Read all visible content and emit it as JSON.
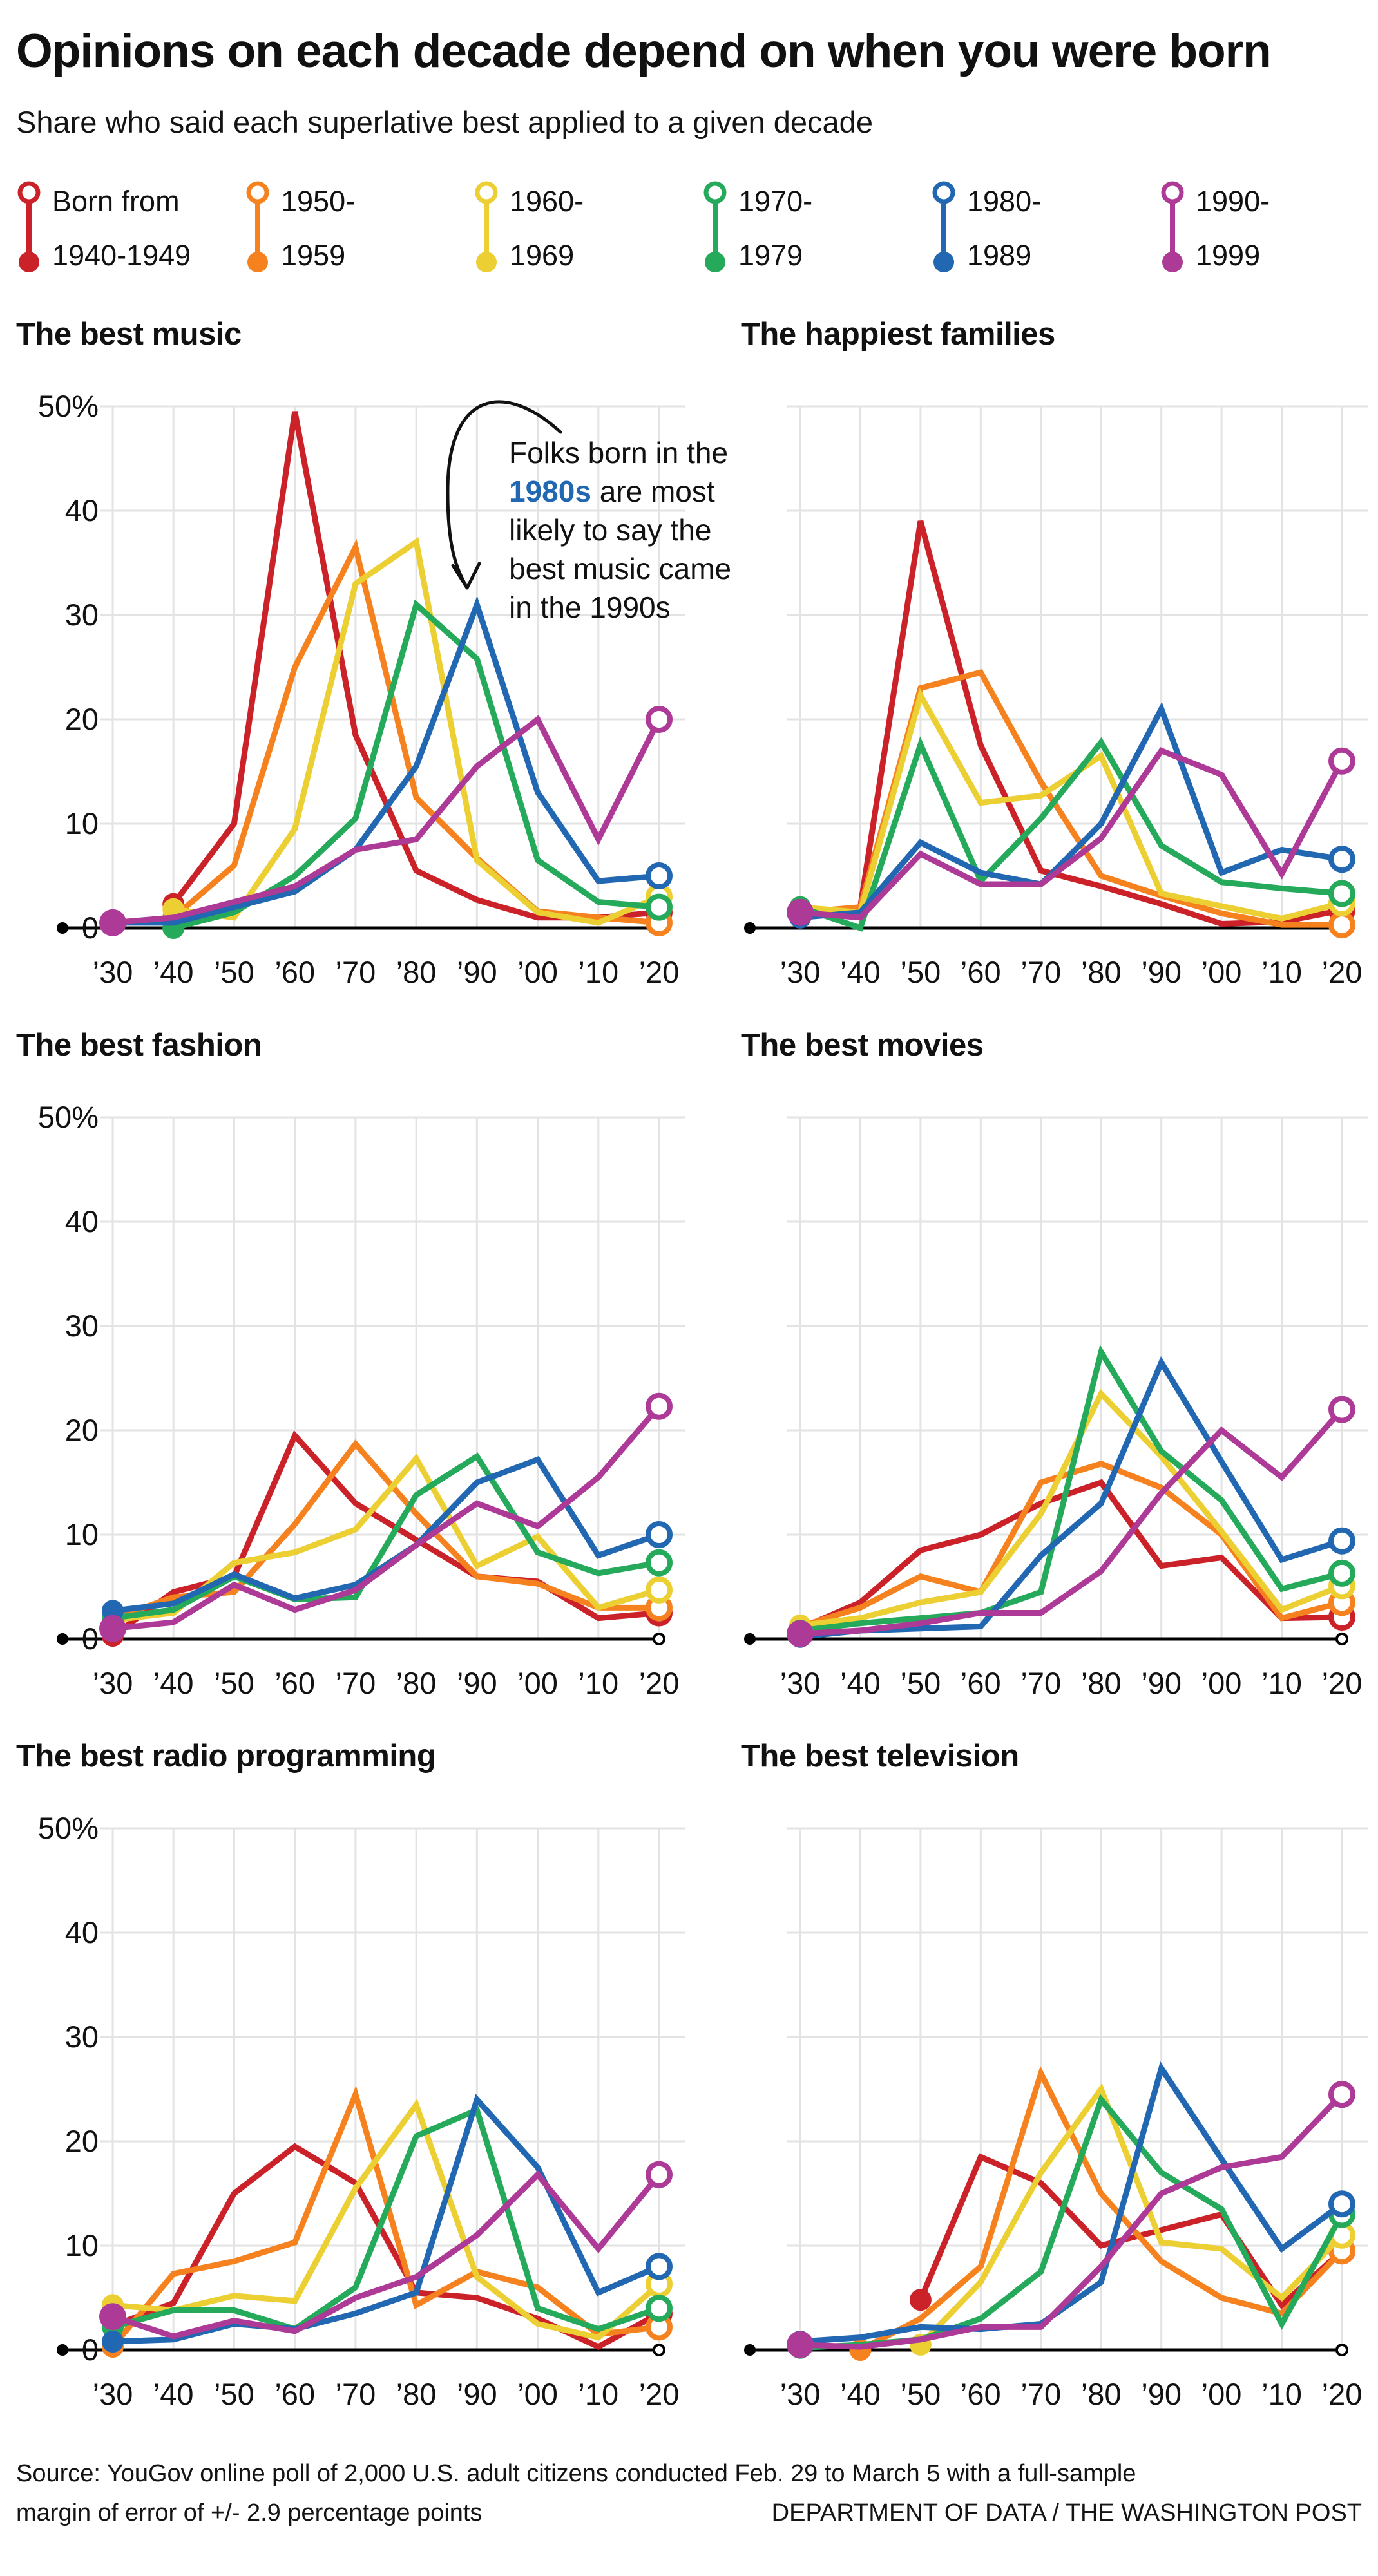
{
  "header": {
    "title": "Opinions on each decade depend on when you were born",
    "subtitle": "Share who said each superlative best applied to a given decade"
  },
  "legend": {
    "items": [
      {
        "line1": "Born from",
        "line2": "1940-1949",
        "color": "#cb2229"
      },
      {
        "line1": "1950-",
        "line2": "1959",
        "color": "#f5821e"
      },
      {
        "line1": "1960-",
        "line2": "1969",
        "color": "#eccf33"
      },
      {
        "line1": "1970-",
        "line2": "1979",
        "color": "#25a95b"
      },
      {
        "line1": "1980-",
        "line2": "1989",
        "color": "#2267b1"
      },
      {
        "line1": "1990-",
        "line2": "1999",
        "color": "#ad3a96"
      }
    ]
  },
  "annotation": {
    "pre": "Folks born in the ",
    "highlight": "1980s",
    "post": " are most likely to say the best music came in the 1990s"
  },
  "chart_data": [
    {
      "type": "line",
      "title": "The best music",
      "has_annotation": true,
      "y_axis_visible": true,
      "ylim": [
        0,
        50
      ],
      "yticks": [
        "50%",
        "40",
        "30",
        "20",
        "10",
        "0"
      ],
      "x_labels": [
        "’30",
        "’40",
        "’50",
        "’60",
        "’70",
        "’80",
        "’90",
        "’00",
        "’10",
        "’20"
      ],
      "series": [
        {
          "name": "Born from 1940-1949",
          "color": "#cb2229",
          "values": [
            null,
            2.3,
            10,
            49.5,
            18.5,
            5.5,
            2.7,
            1,
            1,
            1.5
          ]
        },
        {
          "name": "1950-1959",
          "color": "#f5821e",
          "values": [
            null,
            1,
            6,
            25,
            36.5,
            12.5,
            6.7,
            1.6,
            1,
            0.5
          ]
        },
        {
          "name": "1960-1969",
          "color": "#eccf33",
          "values": [
            null,
            1.8,
            1,
            9.5,
            33,
            37,
            6.5,
            1.5,
            0.5,
            3
          ]
        },
        {
          "name": "1970-1979",
          "color": "#25a95b",
          "values": [
            null,
            0,
            1.5,
            5,
            10.5,
            31,
            25.8,
            6.5,
            2.5,
            2
          ]
        },
        {
          "name": "1980-1989",
          "color": "#2267b1",
          "values": [
            0.5,
            0.5,
            2,
            3.5,
            7.5,
            15.5,
            31,
            13,
            4.5,
            5
          ]
        },
        {
          "name": "1990-1999",
          "color": "#ad3a96",
          "values": [
            0.5,
            1,
            2.5,
            4,
            7.5,
            8.5,
            15.5,
            20,
            8.5,
            20
          ]
        }
      ]
    },
    {
      "type": "line",
      "title": "The happiest families",
      "has_annotation": false,
      "y_axis_visible": false,
      "ylim": [
        0,
        50
      ],
      "yticks": [],
      "x_labels": [
        "’30",
        "’40",
        "’50",
        "’60",
        "’70",
        "’80",
        "’90",
        "’00",
        "’10",
        "’20"
      ],
      "series": [
        {
          "name": "Born from 1940-1949",
          "color": "#cb2229",
          "values": [
            1,
            2,
            39,
            17.5,
            5.5,
            4,
            2.3,
            0.4,
            0.6,
            1.7
          ]
        },
        {
          "name": "1950-1959",
          "color": "#f5821e",
          "values": [
            1.5,
            2,
            23,
            24.5,
            14,
            5,
            3.1,
            1.4,
            0.3,
            0.3
          ]
        },
        {
          "name": "1960-1969",
          "color": "#eccf33",
          "values": [
            2,
            1.5,
            22.3,
            12,
            12.7,
            16.5,
            3.3,
            2.1,
            0.9,
            2.4
          ]
        },
        {
          "name": "1970-1979",
          "color": "#25a95b",
          "values": [
            2,
            0,
            17.6,
            4.5,
            10.5,
            17.8,
            7.9,
            4.4,
            3.8,
            3.3
          ]
        },
        {
          "name": "1980-1989",
          "color": "#2267b1",
          "values": [
            1,
            1.5,
            8.2,
            5.3,
            4.2,
            10,
            21,
            5.3,
            7.5,
            6.6
          ]
        },
        {
          "name": "1990-1999",
          "color": "#ad3a96",
          "values": [
            1.5,
            1,
            7.1,
            4.2,
            4.2,
            8.6,
            17,
            14.7,
            5.2,
            16
          ]
        }
      ]
    },
    {
      "type": "line",
      "title": "The best fashion",
      "has_annotation": false,
      "y_axis_visible": true,
      "ylim": [
        0,
        50
      ],
      "yticks": [
        "50%",
        "40",
        "30",
        "20",
        "10",
        "0"
      ],
      "x_labels": [
        "’30",
        "’40",
        "’50",
        "’60",
        "’70",
        "’80",
        "’90",
        "’00",
        "’10",
        "’20"
      ],
      "series": [
        {
          "name": "Born from 1940-1949",
          "color": "#cb2229",
          "values": [
            0.3,
            4.5,
            6,
            19.5,
            13,
            9.5,
            6,
            5.5,
            2,
            2.5
          ]
        },
        {
          "name": "1950-1959",
          "color": "#f5821e",
          "values": [
            2,
            4,
            4.5,
            11,
            18.7,
            12,
            6,
            5.3,
            3,
            3
          ]
        },
        {
          "name": "1960-1969",
          "color": "#eccf33",
          "values": [
            1.8,
            2.5,
            7.3,
            8.3,
            10.5,
            17.3,
            7,
            9.8,
            3,
            4.7
          ]
        },
        {
          "name": "1970-1979",
          "color": "#25a95b",
          "values": [
            2,
            2.8,
            6,
            3.8,
            4,
            13.8,
            17.5,
            8.3,
            6.3,
            7.3
          ]
        },
        {
          "name": "1980-1989",
          "color": "#2267b1",
          "values": [
            2.7,
            3.4,
            6.2,
            3.9,
            5.2,
            9,
            15,
            17.2,
            8,
            10
          ]
        },
        {
          "name": "1990-1999",
          "color": "#ad3a96",
          "values": [
            1,
            1.6,
            5.2,
            2.8,
            4.7,
            9,
            13,
            10.8,
            15.5,
            22.3
          ]
        }
      ]
    },
    {
      "type": "line",
      "title": "The best movies",
      "has_annotation": false,
      "y_axis_visible": false,
      "ylim": [
        0,
        50
      ],
      "yticks": [],
      "x_labels": [
        "’30",
        "’40",
        "’50",
        "’60",
        "’70",
        "’80",
        "’90",
        "’00",
        "’10",
        "’20"
      ],
      "series": [
        {
          "name": "Born from 1940-1949",
          "color": "#cb2229",
          "values": [
            1,
            3.5,
            8.5,
            10,
            13,
            15,
            7,
            7.8,
            2,
            2.1
          ]
        },
        {
          "name": "1950-1959",
          "color": "#f5821e",
          "values": [
            1.2,
            3,
            6,
            4.5,
            15,
            16.8,
            14.5,
            10,
            2,
            3.5
          ]
        },
        {
          "name": "1960-1969",
          "color": "#eccf33",
          "values": [
            1.3,
            2,
            3.5,
            4.5,
            12,
            23.5,
            17.5,
            10.3,
            2.8,
            5.1
          ]
        },
        {
          "name": "1970-1979",
          "color": "#25a95b",
          "values": [
            0.8,
            1.5,
            2,
            2.5,
            4.5,
            27.5,
            18,
            13.3,
            4.8,
            6.3
          ]
        },
        {
          "name": "1980-1989",
          "color": "#2267b1",
          "values": [
            0.2,
            0.8,
            1,
            1.2,
            8,
            13,
            26.5,
            17,
            7.6,
            9.4
          ]
        },
        {
          "name": "1990-1999",
          "color": "#ad3a96",
          "values": [
            0.5,
            0.8,
            1.5,
            2.5,
            2.5,
            6.5,
            14,
            20,
            15.5,
            22
          ]
        }
      ]
    },
    {
      "type": "line",
      "title": "The best radio programming",
      "has_annotation": false,
      "y_axis_visible": true,
      "ylim": [
        0,
        50
      ],
      "yticks": [
        "50%",
        "40",
        "30",
        "20",
        "10",
        "0"
      ],
      "x_labels": [
        "’30",
        "’40",
        "’50",
        "’60",
        "’70",
        "’80",
        "’90",
        "’00",
        "’10",
        "’20"
      ],
      "series": [
        {
          "name": "Born from 1940-1949",
          "color": "#cb2229",
          "values": [
            2.3,
            4.5,
            15,
            19.5,
            16,
            5.5,
            5,
            3,
            0.3,
            3.5
          ]
        },
        {
          "name": "1950-1959",
          "color": "#f5821e",
          "values": [
            0.3,
            7.3,
            8.5,
            10.3,
            24.5,
            4.3,
            7.5,
            6,
            1.5,
            2.2
          ]
        },
        {
          "name": "1960-1969",
          "color": "#eccf33",
          "values": [
            4.3,
            3.8,
            5.2,
            4.7,
            15.5,
            23.5,
            7,
            2.5,
            1.2,
            6.3
          ]
        },
        {
          "name": "1970-1979",
          "color": "#25a95b",
          "values": [
            2.2,
            3.8,
            3.8,
            2,
            6,
            20.5,
            23,
            4,
            2,
            4
          ]
        },
        {
          "name": "1980-1989",
          "color": "#2267b1",
          "values": [
            0.8,
            1,
            2.5,
            2,
            3.5,
            5.5,
            24,
            17.5,
            5.5,
            8
          ]
        },
        {
          "name": "1990-1999",
          "color": "#ad3a96",
          "values": [
            3.2,
            1.3,
            2.8,
            1.8,
            5,
            7,
            11,
            16.8,
            9.7,
            16.8
          ]
        }
      ]
    },
    {
      "type": "line",
      "title": "The best television",
      "has_annotation": false,
      "y_axis_visible": false,
      "ylim": [
        0,
        50
      ],
      "yticks": [],
      "x_labels": [
        "’30",
        "’40",
        "’50",
        "’60",
        "’70",
        "’80",
        "’90",
        "’00",
        "’10",
        "’20"
      ],
      "series": [
        {
          "name": "Born from 1940-1949",
          "color": "#cb2229",
          "values": [
            null,
            null,
            4.8,
            18.5,
            16,
            10,
            11.5,
            13,
            4.3,
            9.5
          ]
        },
        {
          "name": "1950-1959",
          "color": "#f5821e",
          "values": [
            null,
            0,
            3,
            8,
            26.5,
            15,
            8.5,
            5,
            3.5,
            9.5
          ]
        },
        {
          "name": "1960-1969",
          "color": "#eccf33",
          "values": [
            null,
            null,
            0.5,
            6.5,
            17,
            25,
            10.3,
            9.7,
            5,
            11
          ]
        },
        {
          "name": "1970-1979",
          "color": "#25a95b",
          "values": [
            0.2,
            0.5,
            1,
            3,
            7.5,
            24,
            17,
            13.5,
            2.5,
            13
          ]
        },
        {
          "name": "1980-1989",
          "color": "#2267b1",
          "values": [
            0.8,
            1.2,
            2.2,
            2,
            2.5,
            6.5,
            27,
            18.3,
            9.7,
            14
          ]
        },
        {
          "name": "1990-1999",
          "color": "#ad3a96",
          "values": [
            0.5,
            0.3,
            1,
            2.2,
            2.2,
            8,
            15,
            17.5,
            18.5,
            24.5
          ]
        }
      ]
    }
  ],
  "footer": {
    "source_line1": "Source: YouGov online poll of 2,000 U.S. adult citizens conducted Feb. 29 to March 5 with a full-sample",
    "source_line2": "margin of error of +/- 2.9 percentage points",
    "credit": "DEPARTMENT OF DATA / THE WASHINGTON POST"
  }
}
